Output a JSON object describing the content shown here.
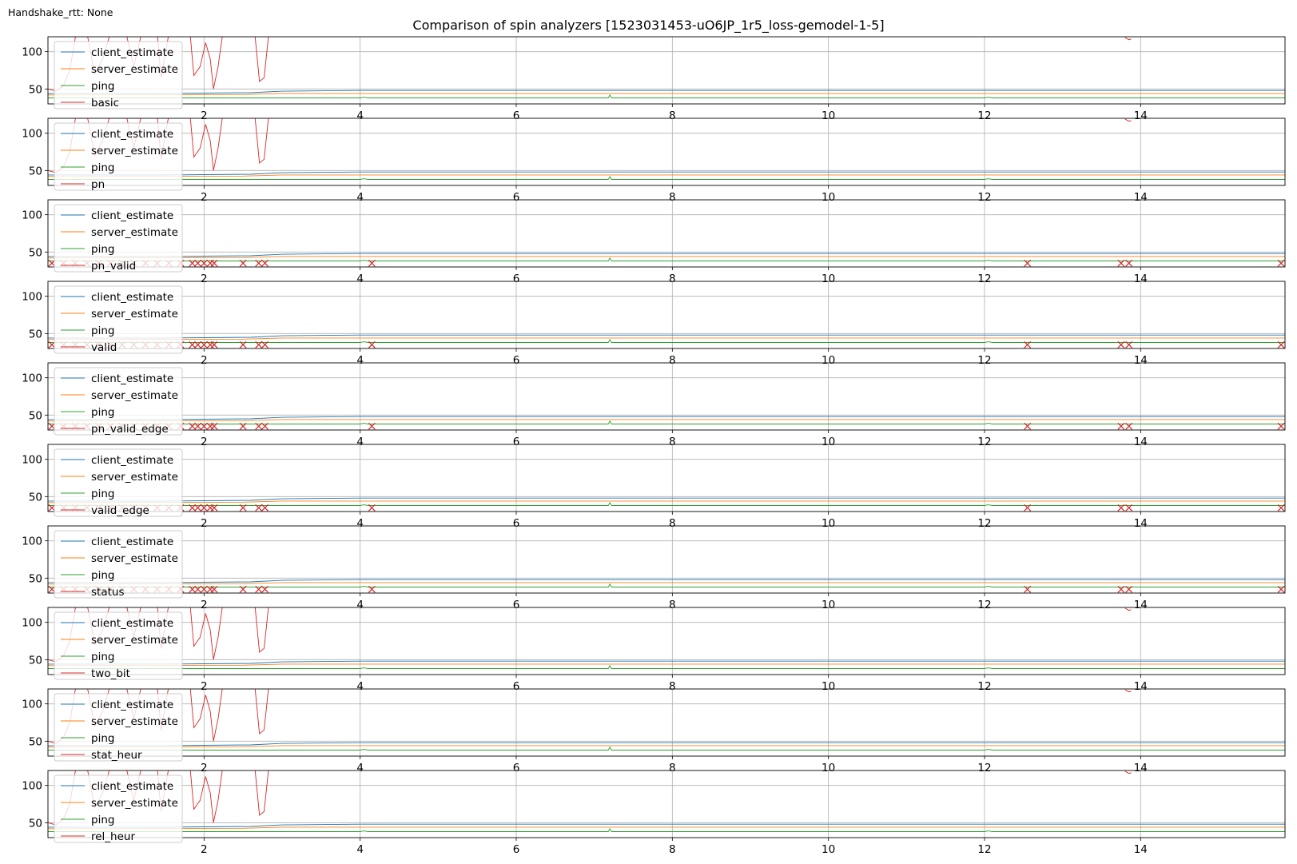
{
  "figure": {
    "corner_note": "Handshake_rtt: None",
    "title": "Comparison of spin analyzers [1523031453-uO6JP_1r5_loss-gemodel-1-5]",
    "colors": {
      "client_estimate": "#1f77b4",
      "server_estimate": "#ff7f0e",
      "ping": "#2ca02c",
      "analyzer": "#d62728",
      "grid": "#b0b0b0"
    }
  },
  "chart_data": [
    {
      "type": "line",
      "title": "",
      "xlabel": "",
      "ylabel": "",
      "xlim": [
        0,
        15.85
      ],
      "ylim": [
        30,
        120
      ],
      "x_ticks": [
        2,
        4,
        6,
        8,
        10,
        12,
        14
      ],
      "y_ticks": [
        50,
        100
      ],
      "grid": true,
      "legend": "upper left",
      "series": [
        {
          "name": "client_estimate"
        },
        {
          "name": "server_estimate"
        },
        {
          "name": "ping"
        },
        {
          "name": "basic",
          "style": "line"
        }
      ]
    },
    {
      "type": "line",
      "title": "",
      "xlabel": "",
      "ylabel": "",
      "xlim": [
        0,
        15.85
      ],
      "ylim": [
        30,
        120
      ],
      "x_ticks": [
        2,
        4,
        6,
        8,
        10,
        12,
        14
      ],
      "y_ticks": [
        50,
        100
      ],
      "grid": true,
      "legend": "upper left",
      "series": [
        {
          "name": "client_estimate"
        },
        {
          "name": "server_estimate"
        },
        {
          "name": "ping"
        },
        {
          "name": "pn",
          "style": "line"
        }
      ]
    },
    {
      "type": "line",
      "title": "",
      "xlabel": "",
      "ylabel": "",
      "xlim": [
        0,
        15.85
      ],
      "ylim": [
        30,
        120
      ],
      "x_ticks": [
        2,
        4,
        6,
        8,
        10,
        12,
        14
      ],
      "y_ticks": [
        50,
        100
      ],
      "grid": true,
      "legend": "upper left",
      "series": [
        {
          "name": "client_estimate"
        },
        {
          "name": "server_estimate"
        },
        {
          "name": "ping"
        },
        {
          "name": "pn_valid",
          "style": "markers"
        }
      ]
    },
    {
      "type": "line",
      "title": "",
      "xlabel": "",
      "ylabel": "",
      "xlim": [
        0,
        15.85
      ],
      "ylim": [
        30,
        120
      ],
      "x_ticks": [
        2,
        4,
        6,
        8,
        10,
        12,
        14
      ],
      "y_ticks": [
        50,
        100
      ],
      "grid": true,
      "legend": "upper left",
      "series": [
        {
          "name": "client_estimate"
        },
        {
          "name": "server_estimate"
        },
        {
          "name": "ping"
        },
        {
          "name": "valid",
          "style": "markers"
        }
      ]
    },
    {
      "type": "line",
      "title": "",
      "xlabel": "",
      "ylabel": "",
      "xlim": [
        0,
        15.85
      ],
      "ylim": [
        30,
        120
      ],
      "x_ticks": [
        2,
        4,
        6,
        8,
        10,
        12,
        14
      ],
      "y_ticks": [
        50,
        100
      ],
      "grid": true,
      "legend": "upper left",
      "series": [
        {
          "name": "client_estimate"
        },
        {
          "name": "server_estimate"
        },
        {
          "name": "ping"
        },
        {
          "name": "pn_valid_edge",
          "style": "markers"
        }
      ]
    },
    {
      "type": "line",
      "title": "",
      "xlabel": "",
      "ylabel": "",
      "xlim": [
        0,
        15.85
      ],
      "ylim": [
        30,
        120
      ],
      "x_ticks": [
        2,
        4,
        6,
        8,
        10,
        12,
        14
      ],
      "y_ticks": [
        50,
        100
      ],
      "grid": true,
      "legend": "upper left",
      "series": [
        {
          "name": "client_estimate"
        },
        {
          "name": "server_estimate"
        },
        {
          "name": "ping"
        },
        {
          "name": "valid_edge",
          "style": "markers"
        }
      ]
    },
    {
      "type": "line",
      "title": "",
      "xlabel": "",
      "ylabel": "",
      "xlim": [
        0,
        15.85
      ],
      "ylim": [
        30,
        120
      ],
      "x_ticks": [
        2,
        4,
        6,
        8,
        10,
        12,
        14
      ],
      "y_ticks": [
        50,
        100
      ],
      "grid": true,
      "legend": "upper left",
      "series": [
        {
          "name": "client_estimate"
        },
        {
          "name": "server_estimate"
        },
        {
          "name": "ping"
        },
        {
          "name": "status",
          "style": "markers"
        }
      ]
    },
    {
      "type": "line",
      "title": "",
      "xlabel": "",
      "ylabel": "",
      "xlim": [
        0,
        15.85
      ],
      "ylim": [
        30,
        120
      ],
      "x_ticks": [
        2,
        4,
        6,
        8,
        10,
        12,
        14
      ],
      "y_ticks": [
        50,
        100
      ],
      "grid": true,
      "legend": "upper left",
      "series": [
        {
          "name": "client_estimate"
        },
        {
          "name": "server_estimate"
        },
        {
          "name": "ping"
        },
        {
          "name": "two_bit",
          "style": "line"
        }
      ]
    },
    {
      "type": "line",
      "title": "",
      "xlabel": "",
      "ylabel": "",
      "xlim": [
        0,
        15.85
      ],
      "ylim": [
        30,
        120
      ],
      "x_ticks": [
        2,
        4,
        6,
        8,
        10,
        12,
        14
      ],
      "y_ticks": [
        50,
        100
      ],
      "grid": true,
      "legend": "upper left",
      "series": [
        {
          "name": "client_estimate"
        },
        {
          "name": "server_estimate"
        },
        {
          "name": "ping"
        },
        {
          "name": "stat_heur",
          "style": "line"
        }
      ]
    },
    {
      "type": "line",
      "title": "",
      "xlabel": "",
      "ylabel": "",
      "xlim": [
        0,
        15.85
      ],
      "ylim": [
        30,
        120
      ],
      "x_ticks": [
        2,
        4,
        6,
        8,
        10,
        12,
        14
      ],
      "y_ticks": [
        50,
        100
      ],
      "grid": true,
      "legend": "upper left",
      "series": [
        {
          "name": "client_estimate"
        },
        {
          "name": "server_estimate"
        },
        {
          "name": "ping"
        },
        {
          "name": "rel_heur",
          "style": "line"
        }
      ]
    }
  ],
  "traces": {
    "client_estimate": [
      [
        0,
        44
      ],
      [
        1.5,
        44
      ],
      [
        2.6,
        45
      ],
      [
        3.0,
        47
      ],
      [
        4.0,
        48
      ],
      [
        6.0,
        48
      ],
      [
        8.0,
        48
      ],
      [
        10.0,
        48
      ],
      [
        12.0,
        48
      ],
      [
        14.0,
        48
      ],
      [
        15.85,
        48
      ]
    ],
    "server_estimate": [
      [
        0,
        42
      ],
      [
        2.5,
        42.5
      ],
      [
        3.0,
        44
      ],
      [
        6.0,
        44
      ],
      [
        10.0,
        44
      ],
      [
        15.85,
        44
      ]
    ],
    "ping": [
      [
        0,
        38
      ],
      [
        4.0,
        38
      ],
      [
        4.05,
        39
      ],
      [
        4.1,
        38
      ],
      [
        7.18,
        38
      ],
      [
        7.2,
        42
      ],
      [
        7.22,
        38
      ],
      [
        12.0,
        38
      ],
      [
        12.05,
        39
      ],
      [
        12.1,
        38
      ],
      [
        15.85,
        38
      ]
    ],
    "analyzer_line": [
      [
        0.0,
        50
      ],
      [
        0.1,
        47
      ],
      [
        0.2,
        55
      ],
      [
        0.28,
        75
      ],
      [
        0.36,
        125
      ],
      [
        0.5,
        125
      ],
      [
        0.6,
        70
      ],
      [
        0.7,
        90
      ],
      [
        0.8,
        125
      ],
      [
        1.0,
        125
      ],
      [
        1.1,
        80
      ],
      [
        1.2,
        125
      ],
      [
        1.4,
        125
      ],
      [
        1.45,
        65
      ],
      [
        1.55,
        125
      ],
      [
        1.65,
        125
      ],
      [
        1.82,
        125
      ],
      [
        1.87,
        68
      ],
      [
        1.95,
        80
      ],
      [
        2.02,
        112
      ],
      [
        2.08,
        90
      ],
      [
        2.12,
        50
      ],
      [
        2.18,
        80
      ],
      [
        2.24,
        125
      ],
      [
        2.65,
        125
      ],
      [
        2.71,
        60
      ],
      [
        2.77,
        65
      ],
      [
        2.83,
        125
      ]
    ],
    "analyzer_line_tail": [
      [
        13.8,
        119
      ],
      [
        13.85,
        116
      ],
      [
        13.88,
        117
      ]
    ],
    "analyzer_markers_x": [
      0.05,
      0.2,
      0.35,
      0.5,
      0.65,
      0.8,
      0.95,
      1.1,
      1.25,
      1.4,
      1.55,
      1.7,
      1.85,
      1.92,
      2.0,
      2.08,
      2.13,
      2.5,
      2.7,
      2.78,
      4.15,
      12.55,
      13.75,
      13.85,
      15.8
    ],
    "analyzer_markers_y": 35
  }
}
